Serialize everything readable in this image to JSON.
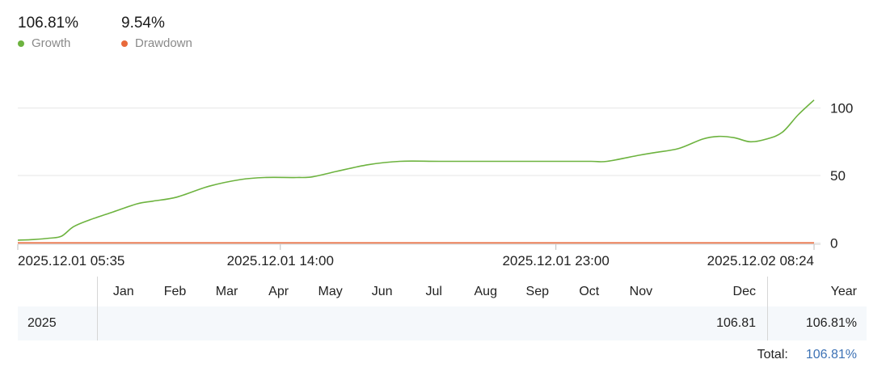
{
  "summary": {
    "growth_value": "106.81%",
    "growth_label": "Growth",
    "drawdown_value": "9.54%",
    "drawdown_label": "Drawdown"
  },
  "colors": {
    "growth": "#6db33f",
    "drawdown": "#e8693b",
    "value_link": "#3d72b5"
  },
  "chart_data": {
    "type": "line",
    "x_tick_labels": [
      "2025.12.01 05:35",
      "2025.12.01 14:00",
      "2025.12.01 23:00",
      "2025.12.02 08:24"
    ],
    "x_tick_positions": [
      0,
      0.3297,
      0.6758,
      1.0
    ],
    "ylim": [
      -1,
      113
    ],
    "y_ticks": [
      0,
      50,
      100
    ],
    "grid": true,
    "series": [
      {
        "name": "Growth",
        "color": "#6db33f",
        "x": [
          0,
          0.02,
          0.04,
          0.055,
          0.07,
          0.09,
          0.12,
          0.15,
          0.17,
          0.2,
          0.24,
          0.28,
          0.31,
          0.35,
          0.37,
          0.4,
          0.44,
          0.48,
          0.53,
          0.6,
          0.68,
          0.72,
          0.74,
          0.78,
          0.8,
          0.83,
          0.86,
          0.88,
          0.9,
          0.92,
          0.94,
          0.96,
          0.98,
          1.0
        ],
        "y": [
          2,
          2.5,
          3.5,
          5,
          12,
          17,
          23,
          29,
          31,
          34,
          42,
          47,
          48.5,
          48.5,
          49,
          53,
          58,
          60.5,
          60.5,
          60.5,
          60.5,
          60.5,
          60.5,
          65,
          67,
          70,
          77,
          79,
          78,
          75,
          77,
          82,
          95,
          106
        ]
      },
      {
        "name": "Drawdown",
        "color": "#e8693b",
        "x": [
          0,
          1.0
        ],
        "y": [
          0,
          0
        ]
      }
    ]
  },
  "table": {
    "headers": [
      "",
      "Jan",
      "Feb",
      "Mar",
      "Apr",
      "May",
      "Jun",
      "Jul",
      "Aug",
      "Sep",
      "Oct",
      "Nov",
      "Dec",
      "Year"
    ],
    "row": {
      "year": "2025",
      "months": [
        "",
        "",
        "",
        "",
        "",
        "",
        "",
        "",
        "",
        "",
        "",
        "106.81"
      ],
      "year_total": "106.81%"
    },
    "total_label": "Total:",
    "total_value": "106.81%"
  }
}
